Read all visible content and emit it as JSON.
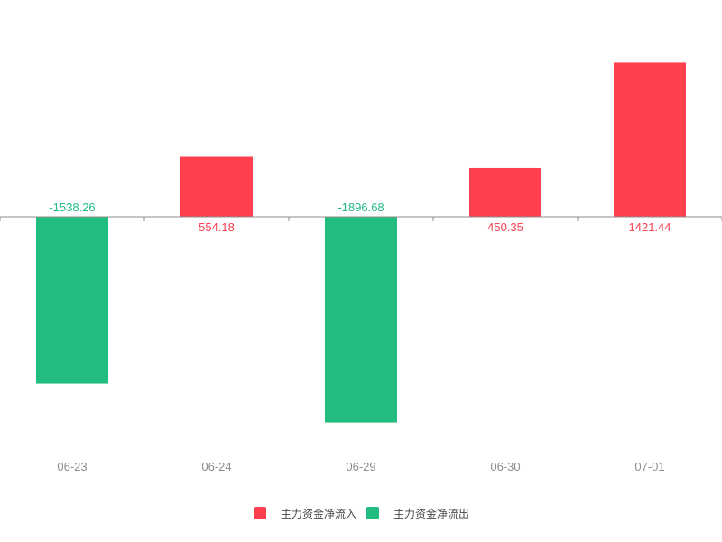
{
  "chart_data": {
    "type": "bar",
    "categories": [
      "06-23",
      "06-24",
      "06-29",
      "06-30",
      "07-01"
    ],
    "values": [
      -1538.26,
      554.18,
      -1896.68,
      450.35,
      1421.44
    ],
    "value_labels": [
      "-1538.26",
      "554.18",
      "-1896.68",
      "450.35",
      "1421.44"
    ],
    "legend": [
      {
        "name": "主力资金净流入",
        "color": "#fd3f4e"
      },
      {
        "name": "主力资金净流出",
        "color": "#22bc80"
      }
    ],
    "positive_color": "#fd3f4e",
    "negative_color": "#22bc80",
    "axis_color": "#8c8c8c",
    "grid": false,
    "legend_position": "bottom-center"
  }
}
